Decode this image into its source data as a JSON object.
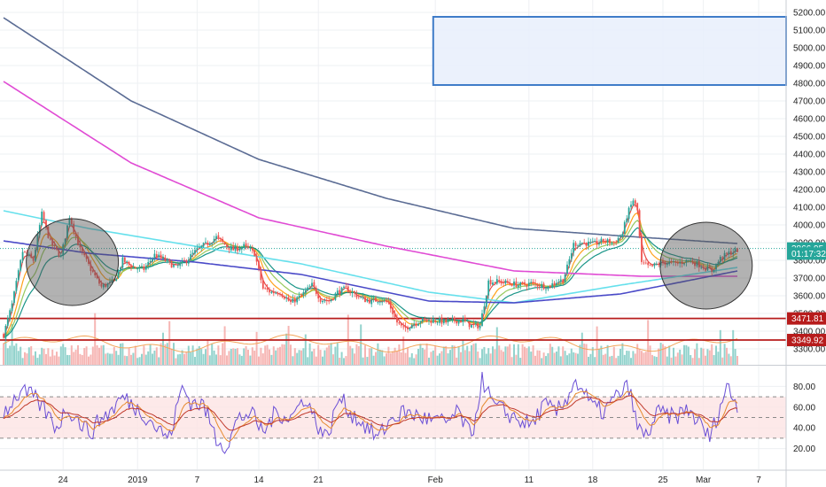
{
  "chart_data": [
    {
      "type": "candlestick",
      "title": "",
      "xlabel": "",
      "ylabel": "",
      "ylim": [
        3210,
        5270
      ],
      "grid": true,
      "x_ticks": [
        "24",
        "2019",
        "7",
        "14",
        "21",
        "Feb",
        "11",
        "18",
        "25",
        "Mar",
        "7"
      ],
      "y_ticks": [
        "5200.00",
        "5100.00",
        "5000.00",
        "4900.00",
        "4800.00",
        "4700.00",
        "4600.00",
        "4500.00",
        "4400.00",
        "4300.00",
        "4200.00",
        "4100.00",
        "4000.00",
        "3900.00",
        "3800.00",
        "3700.00",
        "3600.00",
        "3500.00",
        "3400.00",
        "3300.00"
      ],
      "price_key_points": [
        [
          0,
          3380
        ],
        [
          4,
          3550
        ],
        [
          9,
          3850
        ],
        [
          14,
          3800
        ],
        [
          18,
          4060
        ],
        [
          22,
          3900
        ],
        [
          27,
          3820
        ],
        [
          31,
          4050
        ],
        [
          36,
          3860
        ],
        [
          41,
          3750
        ],
        [
          46,
          3650
        ],
        [
          52,
          3680
        ],
        [
          56,
          3800
        ],
        [
          61,
          3760
        ],
        [
          66,
          3750
        ],
        [
          71,
          3830
        ],
        [
          76,
          3800
        ],
        [
          81,
          3760
        ],
        [
          86,
          3800
        ],
        [
          91,
          3860
        ],
        [
          95,
          3890
        ],
        [
          100,
          3930
        ],
        [
          105,
          3880
        ],
        [
          108,
          3860
        ],
        [
          113,
          3880
        ],
        [
          118,
          3840
        ],
        [
          122,
          3640
        ],
        [
          126,
          3620
        ],
        [
          130,
          3620
        ],
        [
          135,
          3560
        ],
        [
          140,
          3600
        ],
        [
          145,
          3660
        ],
        [
          149,
          3580
        ],
        [
          153,
          3570
        ],
        [
          157,
          3620
        ],
        [
          161,
          3640
        ],
        [
          165,
          3610
        ],
        [
          169,
          3580
        ],
        [
          173,
          3570
        ],
        [
          177,
          3580
        ],
        [
          181,
          3560
        ],
        [
          185,
          3450
        ],
        [
          188,
          3410
        ],
        [
          192,
          3440
        ],
        [
          196,
          3460
        ],
        [
          200,
          3460
        ],
        [
          204,
          3460
        ],
        [
          208,
          3450
        ],
        [
          212,
          3460
        ],
        [
          216,
          3460
        ],
        [
          220,
          3430
        ],
        [
          224,
          3430
        ],
        [
          228,
          3680
        ],
        [
          233,
          3680
        ],
        [
          238,
          3670
        ],
        [
          243,
          3660
        ],
        [
          248,
          3670
        ],
        [
          252,
          3660
        ],
        [
          256,
          3650
        ],
        [
          260,
          3680
        ],
        [
          263,
          3690
        ],
        [
          265,
          3760
        ],
        [
          268,
          3890
        ],
        [
          272,
          3900
        ],
        [
          277,
          3890
        ],
        [
          282,
          3910
        ],
        [
          287,
          3900
        ],
        [
          291,
          3950
        ],
        [
          293,
          4050
        ],
        [
          296,
          4140
        ],
        [
          298,
          4080
        ],
        [
          300,
          3780
        ],
        [
          304,
          3760
        ],
        [
          310,
          3790
        ],
        [
          316,
          3780
        ],
        [
          322,
          3800
        ],
        [
          328,
          3770
        ],
        [
          333,
          3740
        ],
        [
          337,
          3810
        ],
        [
          341,
          3840
        ],
        [
          345,
          3860
        ]
      ],
      "moving_averages": [
        {
          "name": "",
          "color": "#5b6c94",
          "values": [
            [
              0,
              5170
            ],
            [
              60,
              4700
            ],
            [
              120,
              4370
            ],
            [
              180,
              4150
            ],
            [
              240,
              3980
            ],
            [
              300,
              3930
            ],
            [
              345,
              3895
            ]
          ]
        },
        {
          "name": "",
          "color": "#e04bd4",
          "values": [
            [
              0,
              4810
            ],
            [
              60,
              4350
            ],
            [
              120,
              4040
            ],
            [
              180,
              3880
            ],
            [
              240,
              3740
            ],
            [
              300,
              3710
            ],
            [
              345,
              3710
            ]
          ]
        },
        {
          "name": "",
          "color": "#66e0ec",
          "values": [
            [
              0,
              4080
            ],
            [
              40,
              3980
            ],
            [
              90,
              3880
            ],
            [
              140,
              3780
            ],
            [
              200,
              3620
            ],
            [
              240,
              3560
            ],
            [
              290,
              3660
            ],
            [
              345,
              3760
            ]
          ]
        },
        {
          "name": "",
          "color": "#4a4ac8",
          "values": [
            [
              0,
              3910
            ],
            [
              40,
              3840
            ],
            [
              90,
              3790
            ],
            [
              140,
              3720
            ],
            [
              200,
              3570
            ],
            [
              240,
              3560
            ],
            [
              290,
              3610
            ],
            [
              345,
              3740
            ]
          ]
        }
      ],
      "volume_axis_max": 3000,
      "rsi": {
        "range": [
          0,
          100
        ],
        "ticks": [
          "80.00",
          "60.00",
          "40.00",
          "20.00"
        ],
        "band": [
          30,
          70
        ],
        "midline": 50,
        "key_points": [
          [
            0,
            55
          ],
          [
            8,
            75
          ],
          [
            14,
            70
          ],
          [
            20,
            55
          ],
          [
            25,
            40
          ],
          [
            30,
            60
          ],
          [
            36,
            45
          ],
          [
            41,
            35
          ],
          [
            46,
            50
          ],
          [
            50,
            55
          ],
          [
            56,
            70
          ],
          [
            62,
            60
          ],
          [
            68,
            50
          ],
          [
            72,
            40
          ],
          [
            78,
            30
          ],
          [
            84,
            80
          ],
          [
            88,
            65
          ],
          [
            94,
            62
          ],
          [
            100,
            30
          ],
          [
            105,
            22
          ],
          [
            110,
            48
          ],
          [
            116,
            55
          ],
          [
            122,
            35
          ],
          [
            128,
            55
          ],
          [
            135,
            50
          ],
          [
            142,
            70
          ],
          [
            147,
            45
          ],
          [
            152,
            30
          ],
          [
            158,
            70
          ],
          [
            163,
            55
          ],
          [
            170,
            42
          ],
          [
            176,
            30
          ],
          [
            182,
            48
          ],
          [
            188,
            55
          ],
          [
            194,
            52
          ],
          [
            200,
            48
          ],
          [
            208,
            45
          ],
          [
            214,
            55
          ],
          [
            220,
            30
          ],
          [
            225,
            88
          ],
          [
            230,
            62
          ],
          [
            236,
            55
          ],
          [
            242,
            48
          ],
          [
            248,
            42
          ],
          [
            254,
            62
          ],
          [
            260,
            55
          ],
          [
            264,
            65
          ],
          [
            268,
            85
          ],
          [
            272,
            78
          ],
          [
            276,
            62
          ],
          [
            282,
            55
          ],
          [
            288,
            70
          ],
          [
            294,
            80
          ],
          [
            298,
            40
          ],
          [
            302,
            32
          ],
          [
            308,
            55
          ],
          [
            315,
            50
          ],
          [
            322,
            58
          ],
          [
            328,
            42
          ],
          [
            332,
            30
          ],
          [
            336,
            55
          ],
          [
            340,
            80
          ],
          [
            345,
            62
          ]
        ]
      },
      "price_tags": [
        {
          "label": "3866.95",
          "price": 3866.95,
          "color": "#26a69a"
        },
        {
          "label": "01:17:32",
          "price": 3838,
          "color": "#26a69a"
        },
        {
          "label": "3471.81",
          "price": 3471.81,
          "color": "#b71c1c"
        },
        {
          "label": "3349.92",
          "price": 3349.92,
          "color": "#b71c1c"
        }
      ],
      "horizontal_levels": [
        {
          "price": 3471.81,
          "color": "#b71c1c"
        },
        {
          "price": 3349.92,
          "color": "#b71c1c"
        }
      ],
      "target_box": {
        "price_top": 5175,
        "price_bottom": 4790,
        "x_from_bar": 202
      },
      "highlight_circles": [
        {
          "center_bar": 24,
          "center_price": 3790
        },
        {
          "center_bar": 322,
          "center_price": 3770
        }
      ],
      "colors": {
        "up": "#26a69a",
        "down": "#ef5350",
        "box": "#3f7cc8",
        "box_fill": "#e8effb",
        "level": "#b71c1c"
      }
    }
  ]
}
